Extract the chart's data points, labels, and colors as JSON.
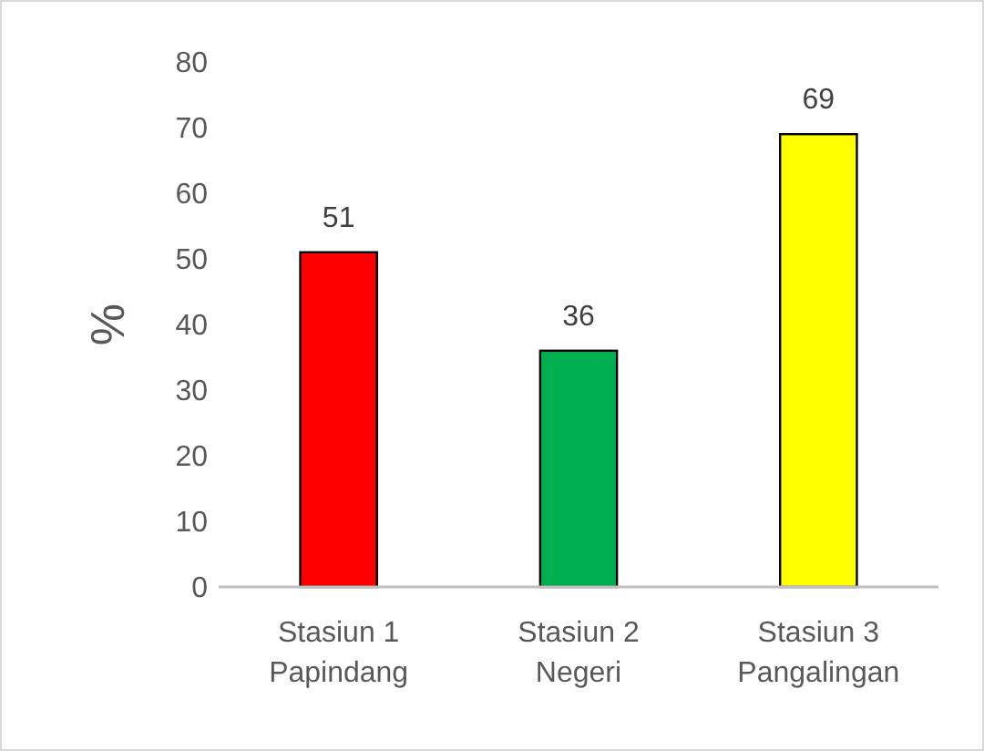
{
  "chart_data": {
    "type": "bar",
    "ylabel": "%",
    "categories": [
      "Stasiun 1\nPapindang",
      "Stasiun 2\nNegeri",
      "Stasiun 3\nPangalingan"
    ],
    "values": [
      51,
      36,
      69
    ],
    "colors": [
      "#ff0000",
      "#00b050",
      "#ffff00"
    ],
    "ylim": [
      0,
      80
    ],
    "yticks": [
      0,
      10,
      20,
      30,
      40,
      50,
      60,
      70,
      80
    ],
    "data_labels": true
  }
}
